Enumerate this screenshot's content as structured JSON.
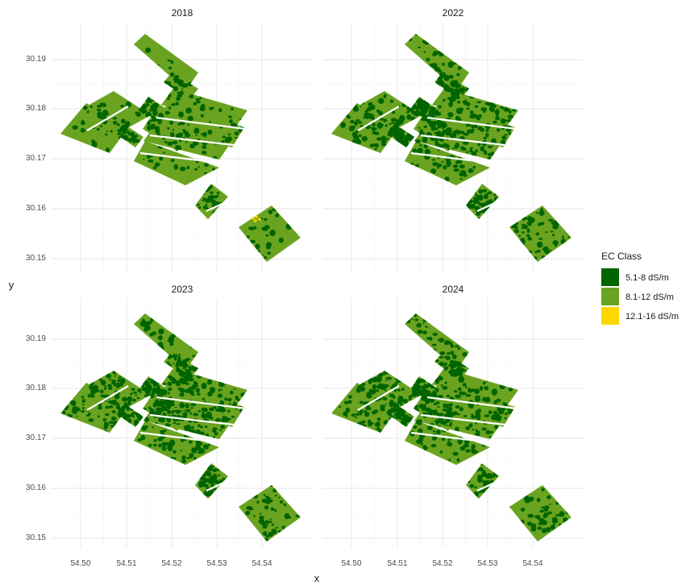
{
  "figure": {
    "xlabel": "x",
    "ylabel": "y",
    "panels": [
      {
        "title": "2018",
        "dark_share": 0.22,
        "has_high": true
      },
      {
        "title": "2022",
        "dark_share": 0.45,
        "has_high": false
      },
      {
        "title": "2023",
        "dark_share": 0.45,
        "has_high": false
      },
      {
        "title": "2024",
        "dark_share": 0.42,
        "has_high": false
      }
    ],
    "x_ticks": [
      "54.50",
      "54.51",
      "54.52",
      "54.53",
      "54.54"
    ],
    "y_ticks": [
      "30.19",
      "30.18",
      "30.17",
      "30.16",
      "30.15"
    ],
    "legend": {
      "title": "EC Class",
      "items": [
        {
          "label": "5.1-8 dS/m",
          "color": "#006400"
        },
        {
          "label": "8.1-12 dS/m",
          "color": "#6aa320"
        },
        {
          "label": "12.1-16 dS/m",
          "color": "#ffd700"
        }
      ]
    }
  }
}
